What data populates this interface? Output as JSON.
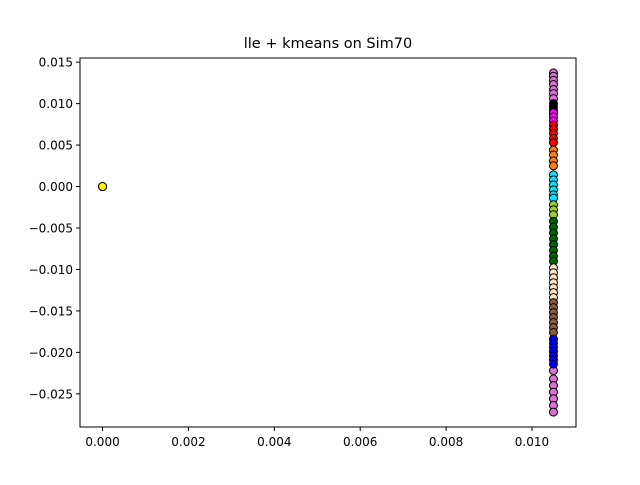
{
  "chart_data": {
    "type": "scatter",
    "title": "lle + kmeans on Sim70",
    "xlabel": "",
    "ylabel": "",
    "xlim": [
      -0.000525,
      0.011025
    ],
    "ylim": [
      -0.029,
      0.0155
    ],
    "xticks": [
      0.0,
      0.002,
      0.004,
      0.006,
      0.008,
      0.01
    ],
    "xtick_labels": [
      "0.000",
      "0.002",
      "0.004",
      "0.006",
      "0.008",
      "0.010"
    ],
    "yticks": [
      0.015,
      0.01,
      0.005,
      0.0,
      -0.005,
      -0.01,
      -0.015,
      -0.02,
      -0.025
    ],
    "ytick_labels": [
      "0.015",
      "0.010",
      "0.005",
      "0.000",
      "−0.005",
      "−0.010",
      "−0.015",
      "−0.020",
      "−0.025"
    ],
    "grid": false,
    "legend": "none",
    "marker_edge_color": "#000000",
    "series": [
      {
        "name": "cluster-yellow",
        "color": "#ffff00",
        "x": [
          0.0,
          0.0,
          0.0
        ],
        "y": [
          0.0,
          0.0,
          0.0
        ]
      },
      {
        "name": "cluster-orchid",
        "color": "#da70d6",
        "x": [
          0.0105,
          0.0105,
          0.0105,
          0.0105,
          0.0105,
          0.0105,
          0.0105,
          0.0105,
          0.0105,
          0.0105,
          0.0105,
          0.0105,
          0.0105,
          0.0105
        ],
        "y": [
          0.0137,
          0.0133,
          0.0128,
          0.0123,
          0.0117,
          0.0112,
          0.0106,
          -0.0222,
          -0.0232,
          -0.024,
          -0.0248,
          -0.0256,
          -0.0264,
          -0.0272
        ]
      },
      {
        "name": "cluster-black",
        "color": "#000000",
        "x": [
          0.0105,
          0.0105,
          0.0105,
          0.0105
        ],
        "y": [
          0.01,
          0.0096,
          0.0092,
          0.0088
        ]
      },
      {
        "name": "cluster-magenta",
        "color": "#ff00ff",
        "x": [
          0.0105,
          0.0105,
          0.0105
        ],
        "y": [
          0.0089,
          0.0084,
          0.0079
        ]
      },
      {
        "name": "cluster-red",
        "color": "#ff0000",
        "x": [
          0.0105,
          0.0105,
          0.0105,
          0.0105,
          0.0105
        ],
        "y": [
          0.0074,
          0.0069,
          0.0064,
          0.0058,
          0.0053
        ]
      },
      {
        "name": "cluster-orange",
        "color": "#ff7f0e",
        "x": [
          0.0105,
          0.0105,
          0.0105,
          0.0105
        ],
        "y": [
          0.0044,
          0.0038,
          0.0031,
          0.0025
        ]
      },
      {
        "name": "cluster-cyan",
        "color": "#00e5ff",
        "x": [
          0.0105,
          0.0105,
          0.0105,
          0.0105,
          0.0105,
          0.0105
        ],
        "y": [
          0.0014,
          0.0008,
          0.0002,
          -0.0004,
          -0.001,
          -0.0014
        ]
      },
      {
        "name": "cluster-yellowgreen",
        "color": "#9acd32",
        "x": [
          0.0105,
          0.0105,
          0.0105
        ],
        "y": [
          -0.0022,
          -0.0028,
          -0.0034
        ]
      },
      {
        "name": "cluster-green",
        "color": "#006400",
        "x": [
          0.0105,
          0.0105,
          0.0105,
          0.0105,
          0.0105,
          0.0105,
          0.0105,
          0.0105
        ],
        "y": [
          -0.0042,
          -0.0049,
          -0.0056,
          -0.0063,
          -0.007,
          -0.0077,
          -0.0084,
          -0.009
        ]
      },
      {
        "name": "cluster-bisque",
        "color": "#ffe4c4",
        "x": [
          0.0105,
          0.0105,
          0.0105,
          0.0105,
          0.0105,
          0.0105,
          0.0105
        ],
        "y": [
          -0.0098,
          -0.0104,
          -0.011,
          -0.0116,
          -0.0122,
          -0.0128,
          -0.0134
        ]
      },
      {
        "name": "cluster-brown",
        "color": "#8b5a3c",
        "x": [
          0.0105,
          0.0105,
          0.0105,
          0.0105,
          0.0105,
          0.0105,
          0.0105
        ],
        "y": [
          -0.014,
          -0.0146,
          -0.0152,
          -0.0158,
          -0.0164,
          -0.017,
          -0.0176
        ]
      },
      {
        "name": "cluster-blue",
        "color": "#0000ff",
        "x": [
          0.0105,
          0.0105,
          0.0105,
          0.0105,
          0.0105,
          0.0105,
          0.0105
        ],
        "y": [
          -0.0184,
          -0.0189,
          -0.0194,
          -0.0199,
          -0.0204,
          -0.0209,
          -0.0214
        ]
      }
    ]
  }
}
